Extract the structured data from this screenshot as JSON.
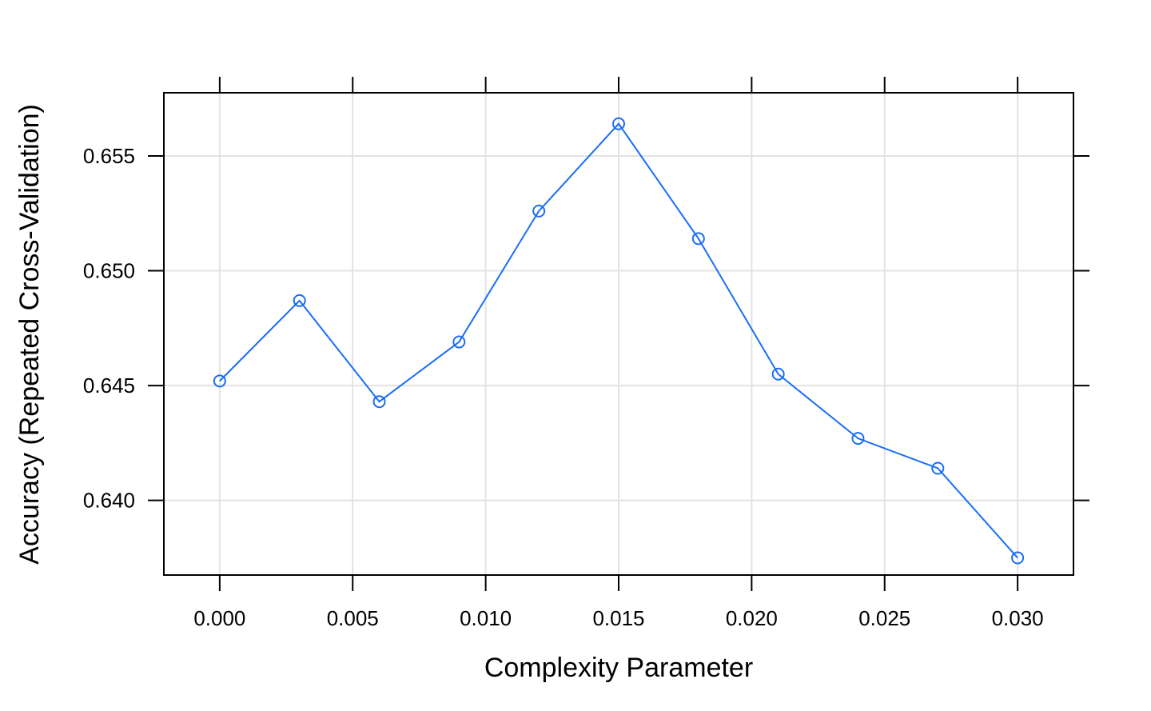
{
  "chart_data": {
    "type": "line",
    "title": "",
    "xlabel": "Complexity Parameter",
    "ylabel": "Accuracy (Repeated Cross-Validation)",
    "xlim": [
      -0.0021,
      0.0321
    ],
    "ylim": [
      0.63675,
      0.65775
    ],
    "x_ticks": [
      0.0,
      0.005,
      0.01,
      0.015,
      0.02,
      0.025,
      0.03
    ],
    "x_tick_labels": [
      "0.000",
      "0.005",
      "0.010",
      "0.015",
      "0.020",
      "0.025",
      "0.030"
    ],
    "y_ticks": [
      0.64,
      0.645,
      0.65,
      0.655
    ],
    "y_tick_labels": [
      "0.640",
      "0.645",
      "0.650",
      "0.655"
    ],
    "grid": true,
    "legend": "none",
    "series": [
      {
        "color": "#1a6ef5",
        "marker": "open-circle",
        "x": [
          0.0,
          0.003,
          0.006,
          0.009,
          0.012,
          0.015,
          0.018,
          0.021,
          0.024,
          0.027,
          0.03
        ],
        "y": [
          0.6452,
          0.6487,
          0.6443,
          0.6469,
          0.6526,
          0.6564,
          0.6514,
          0.6455,
          0.6427,
          0.6414,
          0.6375
        ]
      }
    ]
  }
}
